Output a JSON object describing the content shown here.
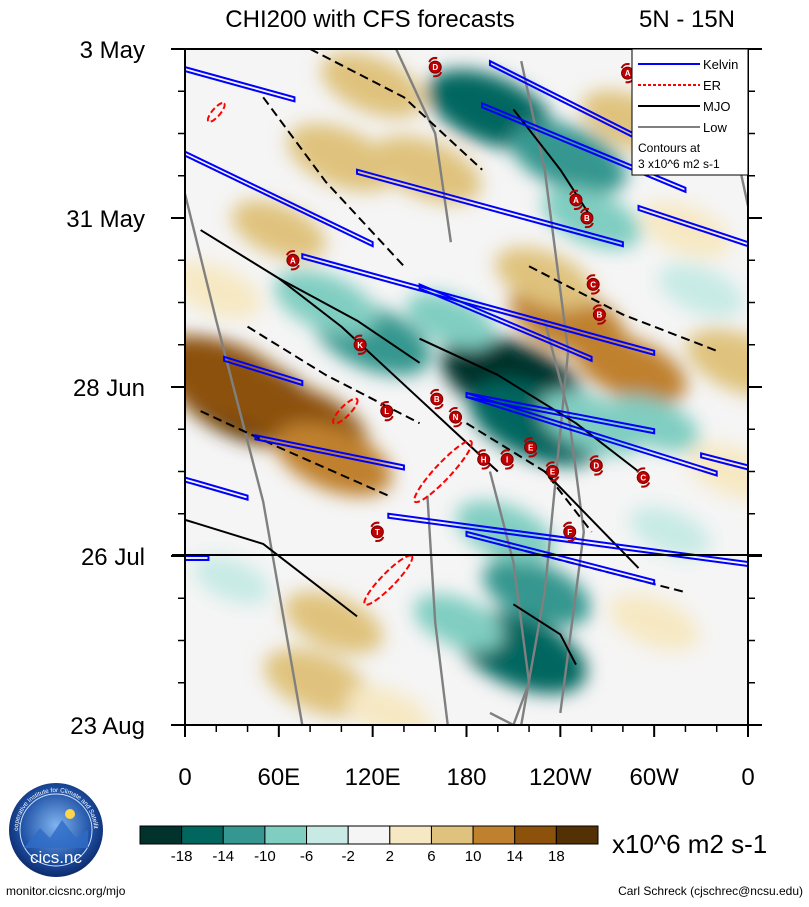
{
  "page": {
    "footer_left": "monitor.cicsnc.org/mjo",
    "footer_right": "Carl Schreck (cjschrec@ncsu.edu)",
    "logo_text": "cics.nc",
    "logo_ring_text": "Cooperative Institute for Climate and Satellites"
  },
  "chart_data": {
    "type": "heatmap",
    "title": "CHI200 with CFS forecasts",
    "region": "5N - 15N",
    "xlabel": "",
    "ylabel": "",
    "x_ticks": [
      "0",
      "60E",
      "120E",
      "180",
      "120W",
      "60W",
      "0"
    ],
    "x_range": [
      0,
      360
    ],
    "y_ticks": [
      "3 May",
      "31 May",
      "28 Jun",
      "26 Jul",
      "23 Aug"
    ],
    "y_range_days": [
      0,
      112
    ],
    "forecast_start_label": "26 Jul",
    "legend": {
      "entries": [
        {
          "label": "Kelvin",
          "color": "#0000ff",
          "style": "solid"
        },
        {
          "label": "ER",
          "color": "#ff0000",
          "style": "dashed"
        },
        {
          "label": "MJO",
          "color": "#000000",
          "style": "solid"
        },
        {
          "label": "Low",
          "color": "#808080",
          "style": "solid"
        }
      ],
      "note_line1": "Contours at",
      "note_line2": "3 x10^6 m2 s-1",
      "position": "top-right"
    },
    "colorbar": {
      "unit": "x10^6 m2 s-1",
      "labels": [
        "-18",
        "-14",
        "-10",
        "-6",
        "-2",
        "2",
        "6",
        "10",
        "14",
        "18"
      ],
      "colors": [
        "#01322c",
        "#01665e",
        "#35978f",
        "#80cdc1",
        "#c7eae5",
        "#f5f5f5",
        "#f6e8c3",
        "#dfc27d",
        "#bf812d",
        "#8c510a",
        "#543005"
      ]
    },
    "tropical_cyclones": [
      {
        "letter": "D",
        "lon": 160,
        "day": 3
      },
      {
        "letter": "A",
        "lon": 283,
        "day": 4
      },
      {
        "letter": "A",
        "lon": 250,
        "day": 25
      },
      {
        "letter": "B",
        "lon": 257,
        "day": 28
      },
      {
        "letter": "A",
        "lon": 69,
        "day": 35
      },
      {
        "letter": "C",
        "lon": 261,
        "day": 39
      },
      {
        "letter": "B",
        "lon": 265,
        "day": 44
      },
      {
        "letter": "K",
        "lon": 112,
        "day": 49
      },
      {
        "letter": "B",
        "lon": 161,
        "day": 58
      },
      {
        "letter": "L",
        "lon": 129,
        "day": 60
      },
      {
        "letter": "N",
        "lon": 173,
        "day": 61
      },
      {
        "letter": "E",
        "lon": 221,
        "day": 66
      },
      {
        "letter": "H",
        "lon": 191,
        "day": 68
      },
      {
        "letter": "I",
        "lon": 206,
        "day": 68
      },
      {
        "letter": "D",
        "lon": 263,
        "day": 69
      },
      {
        "letter": "E",
        "lon": 235,
        "day": 70
      },
      {
        "letter": "C",
        "lon": 293,
        "day": 71
      },
      {
        "letter": "T",
        "lon": 123,
        "day": 80
      },
      {
        "letter": "F",
        "lon": 246,
        "day": 80
      }
    ],
    "kelvin_contours": [
      {
        "lon": [
          0,
          70
        ],
        "day": [
          3,
          8
        ]
      },
      {
        "lon": [
          195,
          310
        ],
        "day": [
          2,
          17
        ]
      },
      {
        "lon": [
          190,
          320
        ],
        "day": [
          9,
          23
        ]
      },
      {
        "lon": [
          110,
          280
        ],
        "day": [
          20,
          32
        ]
      },
      {
        "lon": [
          0,
          120
        ],
        "day": [
          17,
          32
        ]
      },
      {
        "lon": [
          290,
          360
        ],
        "day": [
          26,
          32
        ]
      },
      {
        "lon": [
          75,
          300
        ],
        "day": [
          34,
          50
        ]
      },
      {
        "lon": [
          150,
          260
        ],
        "day": [
          39,
          51
        ]
      },
      {
        "lon": [
          25,
          75
        ],
        "day": [
          51,
          55
        ]
      },
      {
        "lon": [
          180,
          340
        ],
        "day": [
          57,
          70
        ]
      },
      {
        "lon": [
          180,
          300
        ],
        "day": [
          57,
          63
        ]
      },
      {
        "lon": [
          45,
          140
        ],
        "day": [
          64,
          69
        ]
      },
      {
        "lon": [
          330,
          360
        ],
        "day": [
          67,
          69
        ]
      },
      {
        "lon": [
          0,
          40
        ],
        "day": [
          71,
          74
        ]
      },
      {
        "lon": [
          130,
          360
        ],
        "day": [
          77,
          85
        ]
      },
      {
        "lon": [
          180,
          300
        ],
        "day": [
          80,
          88
        ]
      },
      {
        "lon": [
          0,
          15
        ],
        "day": [
          84,
          84
        ]
      }
    ],
    "er_contours": [
      {
        "lon": [
          15,
          25
        ],
        "day": [
          9,
          12
        ],
        "width": 4
      },
      {
        "lon": [
          95,
          110
        ],
        "day": [
          58,
          62
        ],
        "width": 5
      },
      {
        "lon": [
          147,
          183
        ],
        "day": [
          65,
          75
        ],
        "width": 8
      },
      {
        "lon": [
          115,
          145
        ],
        "day": [
          84,
          92
        ],
        "width": 7
      }
    ],
    "mjo_contours": [
      {
        "lon": [
          10,
          60,
          100,
          150,
          200
        ],
        "day": [
          30,
          38,
          46,
          58,
          70
        ],
        "dashed": false
      },
      {
        "lon": [
          60,
          110,
          150
        ],
        "day": [
          38,
          45,
          52
        ],
        "dashed": false
      },
      {
        "lon": [
          150,
          200,
          250,
          290
        ],
        "day": [
          48,
          54,
          62,
          70
        ],
        "dashed": false
      },
      {
        "lon": [
          210,
          240,
          260
        ],
        "day": [
          10,
          20,
          28
        ],
        "dashed": false
      },
      {
        "lon": [
          230,
          260,
          290
        ],
        "day": [
          70,
          78,
          86
        ],
        "dashed": false
      },
      {
        "lon": [
          0,
          50,
          110
        ],
        "day": [
          78,
          82,
          94
        ],
        "dashed": false
      },
      {
        "lon": [
          210,
          240,
          250
        ],
        "day": [
          92,
          97,
          102
        ],
        "dashed": false
      },
      {
        "lon": [
          80,
          140,
          190
        ],
        "day": [
          0,
          8,
          20
        ],
        "dashed": true
      },
      {
        "lon": [
          40,
          90,
          150
        ],
        "day": [
          46,
          54,
          62
        ],
        "dashed": true
      },
      {
        "lon": [
          10,
          60,
          130
        ],
        "day": [
          60,
          66,
          74
        ],
        "dashed": true
      },
      {
        "lon": [
          220,
          280,
          340
        ],
        "day": [
          36,
          44,
          50
        ],
        "dashed": true
      },
      {
        "lon": [
          200,
          260,
          320
        ],
        "day": [
          82,
          86,
          90
        ],
        "dashed": true
      },
      {
        "lon": [
          50,
          90,
          140
        ],
        "day": [
          8,
          22,
          36
        ],
        "dashed": true
      },
      {
        "lon": [
          180,
          230,
          260
        ],
        "day": [
          62,
          70,
          80
        ],
        "dashed": true
      }
    ],
    "low_contours": [
      {
        "lon": [
          0,
          20,
          50,
          75
        ],
        "day": [
          24,
          45,
          75,
          112
        ]
      },
      {
        "lon": [
          135,
          160,
          170
        ],
        "day": [
          0,
          14,
          32
        ]
      },
      {
        "lon": [
          155,
          160,
          168
        ],
        "day": [
          74,
          95,
          112
        ]
      },
      {
        "lon": [
          195,
          210,
          220,
          210,
          195
        ],
        "day": [
          70,
          85,
          105,
          112,
          110
        ]
      },
      {
        "lon": [
          215,
          230,
          245,
          230,
          215
        ],
        "day": [
          2,
          20,
          50,
          90,
          112
        ]
      },
      {
        "lon": [
          230,
          245,
          255,
          245,
          240
        ],
        "day": [
          45,
          60,
          80,
          100,
          110
        ]
      },
      {
        "lon": [
          340,
          355,
          360
        ],
        "day": [
          10,
          20,
          26
        ]
      }
    ],
    "anomaly_field": [
      {
        "lon": 40,
        "day": 58,
        "value": 20
      },
      {
        "lon": 25,
        "day": 55,
        "value": 18
      },
      {
        "lon": 75,
        "day": 62,
        "value": 15
      },
      {
        "lon": 95,
        "day": 68,
        "value": 12
      },
      {
        "lon": 100,
        "day": 18,
        "value": 10
      },
      {
        "lon": 120,
        "day": 6,
        "value": 9
      },
      {
        "lon": 155,
        "day": 20,
        "value": 10
      },
      {
        "lon": 60,
        "day": 30,
        "value": 7
      },
      {
        "lon": 20,
        "day": 40,
        "value": 6
      },
      {
        "lon": 245,
        "day": 45,
        "value": 12
      },
      {
        "lon": 230,
        "day": 38,
        "value": 8
      },
      {
        "lon": 285,
        "day": 53,
        "value": 11
      },
      {
        "lon": 355,
        "day": 52,
        "value": 10
      },
      {
        "lon": 285,
        "day": 12,
        "value": 8
      },
      {
        "lon": 320,
        "day": 30,
        "value": 6
      },
      {
        "lon": 350,
        "day": 70,
        "value": 6
      },
      {
        "lon": 95,
        "day": 95,
        "value": 8
      },
      {
        "lon": 85,
        "day": 105,
        "value": 10
      },
      {
        "lon": 300,
        "day": 95,
        "value": 6
      },
      {
        "lon": 130,
        "day": 110,
        "value": 5
      },
      {
        "lon": 120,
        "day": 48,
        "value": -12
      },
      {
        "lon": 90,
        "day": 42,
        "value": -9
      },
      {
        "lon": 210,
        "day": 55,
        "value": -18
      },
      {
        "lon": 225,
        "day": 62,
        "value": -16
      },
      {
        "lon": 195,
        "day": 10,
        "value": -14
      },
      {
        "lon": 245,
        "day": 18,
        "value": -12
      },
      {
        "lon": 260,
        "day": 28,
        "value": -8
      },
      {
        "lon": 260,
        "day": 62,
        "value": -9
      },
      {
        "lon": 215,
        "day": 100,
        "value": -15
      },
      {
        "lon": 225,
        "day": 90,
        "value": -10
      },
      {
        "lon": 205,
        "day": 80,
        "value": -8
      },
      {
        "lon": 175,
        "day": 95,
        "value": -6
      },
      {
        "lon": 330,
        "day": 40,
        "value": -5
      },
      {
        "lon": 310,
        "day": 80,
        "value": -4
      },
      {
        "lon": 300,
        "day": 62,
        "value": -6
      },
      {
        "lon": 170,
        "day": 45,
        "value": -6
      },
      {
        "lon": 30,
        "day": 88,
        "value": -3
      }
    ]
  }
}
